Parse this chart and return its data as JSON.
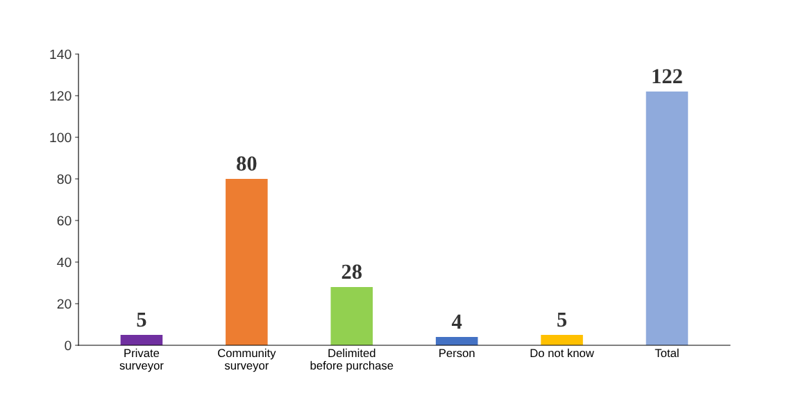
{
  "chart_data": {
    "type": "bar",
    "categories": [
      "Private\nsurveyor",
      "Community\nsurveyor",
      "Delimited\nbefore purchase",
      "Person",
      "Do not know",
      "Total"
    ],
    "values": [
      5,
      80,
      28,
      4,
      5,
      122
    ],
    "colors": [
      "#7030a0",
      "#ed7d31",
      "#92d050",
      "#4472c4",
      "#ffc000",
      "#8faadc"
    ],
    "ylim": [
      0,
      140
    ],
    "yticks": [
      0,
      20,
      40,
      60,
      80,
      100,
      120,
      140
    ],
    "data_labels": true,
    "grid": false,
    "legend": false
  }
}
